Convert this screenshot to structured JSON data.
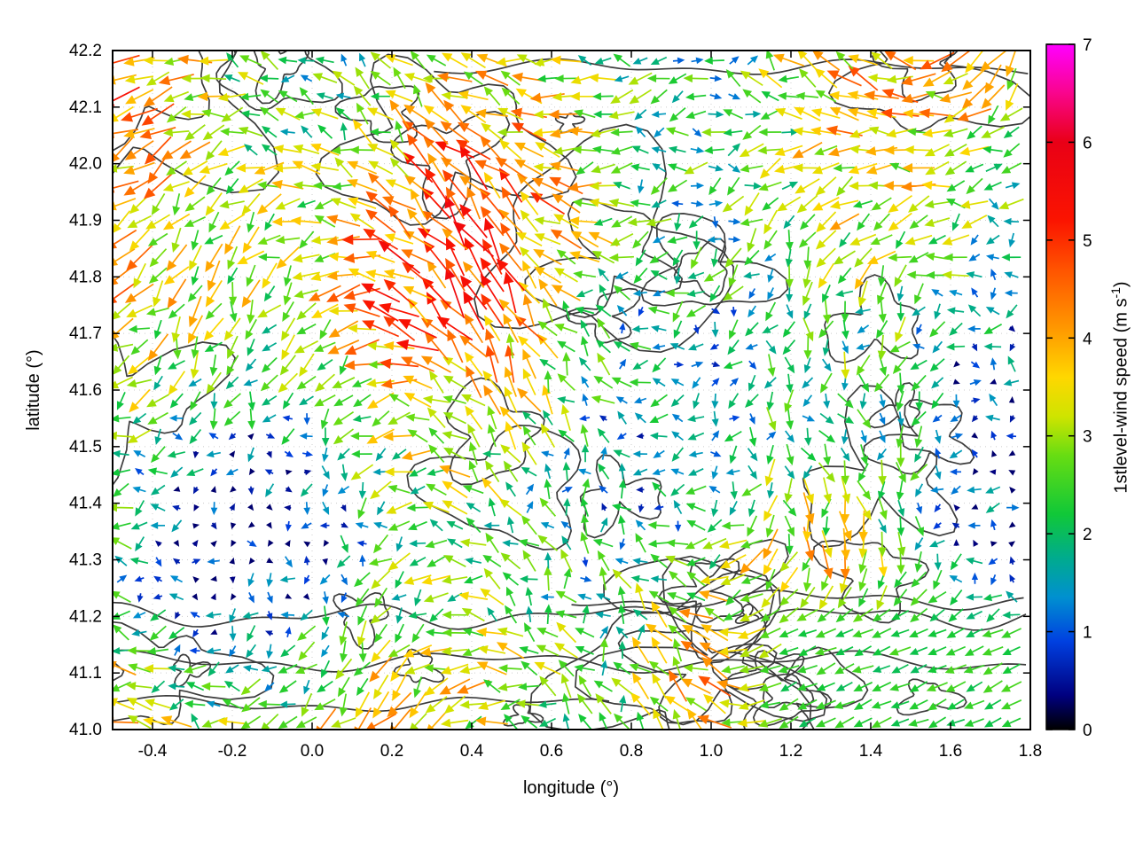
{
  "figure": {
    "background": "#ffffff"
  },
  "chart_data": {
    "type": "quiver",
    "title": "",
    "xlabel": "longitude (°)",
    "ylabel": "latitude (°)",
    "xlim": [
      -0.5,
      1.8
    ],
    "ylim": [
      41.0,
      42.2
    ],
    "xticks": [
      -0.4,
      -0.2,
      0.0,
      0.2,
      0.4,
      0.6,
      0.8,
      1.0,
      1.2,
      1.4,
      1.6,
      1.8
    ],
    "xtick_labels": [
      "-0.4",
      "-0.2",
      "0.0",
      "0.2",
      "0.4",
      "0.6",
      "0.8",
      "1.0",
      "1.2",
      "1.4",
      "1.6",
      "1.8"
    ],
    "yticks": [
      41.0,
      41.1,
      41.2,
      41.3,
      41.4,
      41.5,
      41.6,
      41.7,
      41.8,
      41.9,
      42.0,
      42.1,
      42.2
    ],
    "ytick_labels": [
      "41.0",
      "41.1",
      "41.2",
      "41.3",
      "41.4",
      "41.5",
      "41.6",
      "41.7",
      "41.8",
      "41.9",
      "42.0",
      "42.1",
      "42.2"
    ],
    "grid": true,
    "colorbar": {
      "label_prefix": "1stlevel-wind speed (m s",
      "label_superscript": "-1",
      "label_suffix": ")",
      "min": 0,
      "max": 7,
      "ticks": [
        0,
        1,
        2,
        3,
        4,
        5,
        6,
        7
      ],
      "palette": [
        {
          "v": 0.0,
          "color": "#000000"
        },
        {
          "v": 0.35,
          "color": "#000080"
        },
        {
          "v": 0.9,
          "color": "#0040e0"
        },
        {
          "v": 1.35,
          "color": "#0090d0"
        },
        {
          "v": 1.75,
          "color": "#00ab8e"
        },
        {
          "v": 2.2,
          "color": "#10c838"
        },
        {
          "v": 2.8,
          "color": "#67dd12"
        },
        {
          "v": 3.2,
          "color": "#cfe400"
        },
        {
          "v": 3.6,
          "color": "#ffd700"
        },
        {
          "v": 4.1,
          "color": "#ff9800"
        },
        {
          "v": 4.7,
          "color": "#ff5300"
        },
        {
          "v": 5.2,
          "color": "#fb1400"
        },
        {
          "v": 6.0,
          "color": "#e90016"
        },
        {
          "v": 6.5,
          "color": "#f9058c"
        },
        {
          "v": 7.0,
          "color": "#ff00ff"
        }
      ]
    },
    "contours": {
      "color": "#3c3c3c",
      "description": "terrain elevation contour lines over the mapped region",
      "render_seed": 7
    },
    "vector_field_summary": {
      "description": "Wind vectors on a regular lon/lat grid; arrow length and color scale with wind speed; dominant flow is westward (arrows point left), strongest (orange/red, 4-5 m/s) bands across west and south, calm blue (<1.5 m/s) patch in the northeast, uniform ~2 m/s south-westward flow in the southeast corner, rare magenta vectors near 7 m/s",
      "speed_range_ms": [
        0.3,
        7
      ]
    },
    "render_hints": {
      "seed": 42,
      "lon0": -0.478,
      "lat0": 41.013,
      "dlon": 0.0465,
      "dlat": 0.0316
    }
  }
}
